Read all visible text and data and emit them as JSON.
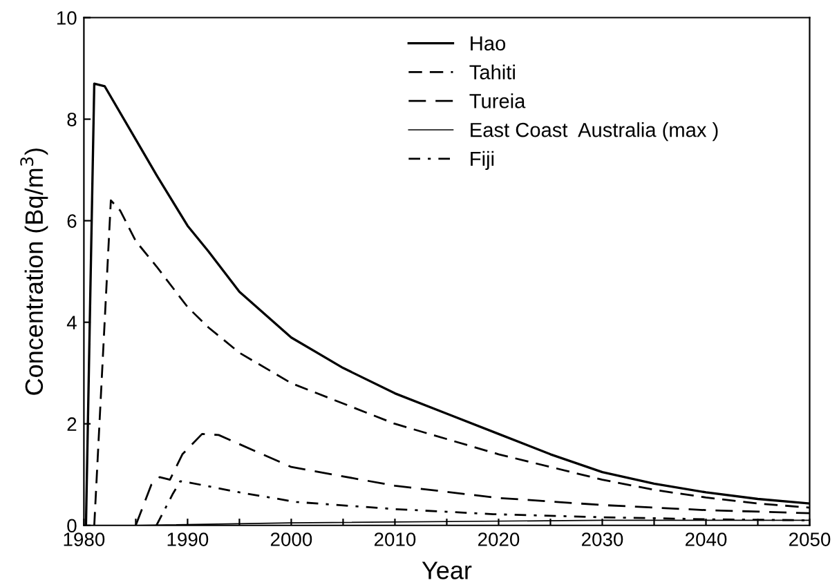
{
  "chart_data": {
    "type": "line",
    "xlabel": "Year",
    "ylabel": "Concentration (Bq/m$^{3}$)",
    "xlim": [
      1980,
      2050
    ],
    "ylim": [
      0,
      10
    ],
    "xticks": [
      1980,
      {
        "value": 1985,
        "label": null
      },
      1990,
      {
        "value": 1995,
        "label": null
      },
      2000,
      {
        "value": 2005,
        "label": null
      },
      2010,
      {
        "value": 2015,
        "label": null
      },
      2020,
      {
        "value": 2025,
        "label": null
      },
      2030,
      {
        "value": 2035,
        "label": null
      },
      2040,
      {
        "value": 2045,
        "label": null
      },
      2050
    ],
    "yticks": [
      0,
      2,
      4,
      6,
      8,
      10
    ],
    "legend": "top right",
    "grid": false,
    "marker": "none",
    "series": [
      {
        "name": "Hao",
        "color": "#000000",
        "line_style": "solid",
        "x": [
          1980.2,
          1981,
          1982,
          1985,
          1987,
          1990,
          1992,
          1995,
          2000,
          2005,
          2010,
          2015,
          2020,
          2025,
          2030,
          2035,
          2040,
          2045,
          2050
        ],
        "values": [
          0,
          8.7,
          8.65,
          7.6,
          6.9,
          5.9,
          5.4,
          4.6,
          3.7,
          3.1,
          2.6,
          2.2,
          1.8,
          1.4,
          1.05,
          0.82,
          0.65,
          0.52,
          0.43
        ]
      },
      {
        "name": "Tahiti",
        "color": "#000000",
        "line_style": "dashed",
        "x": [
          1981,
          1982.6,
          1983.5,
          1985,
          1987,
          1990,
          1992,
          1995,
          2000,
          2005,
          2010,
          2015,
          2020,
          2025,
          2030,
          2035,
          2040,
          2045,
          2050
        ],
        "values": [
          0,
          6.4,
          6.2,
          5.6,
          5.1,
          4.3,
          3.9,
          3.4,
          2.8,
          2.4,
          2.0,
          1.7,
          1.4,
          1.15,
          0.9,
          0.7,
          0.55,
          0.43,
          0.35
        ]
      },
      {
        "name": "Tureia",
        "color": "#000000",
        "line_style": "dashed",
        "x": [
          1985,
          1986.5,
          1987.3,
          1988.3,
          1989.5,
          1991.4,
          1993,
          1995,
          2000,
          2010,
          2020,
          2030,
          2040,
          2050
        ],
        "values": [
          0,
          0.8,
          0.95,
          0.9,
          1.4,
          1.8,
          1.78,
          1.6,
          1.15,
          0.78,
          0.54,
          0.4,
          0.3,
          0.24
        ]
      },
      {
        "name": "East Coast  Australia (max )",
        "color": "#000000",
        "line_style": "solid",
        "x": [
          1985,
          2000,
          2030,
          2050
        ],
        "values": [
          0,
          0.05,
          0.1,
          0.1
        ]
      },
      {
        "name": "Fiji",
        "color": "#000000",
        "line_style": "dashed",
        "x": [
          1987,
          1988.6,
          1989.3,
          1990,
          1995,
          2000.5,
          2010,
          2019.5,
          2030,
          2040,
          2050
        ],
        "values": [
          0,
          0.63,
          0.87,
          0.85,
          0.65,
          0.46,
          0.32,
          0.22,
          0.16,
          0.12,
          0.1
        ]
      }
    ]
  }
}
